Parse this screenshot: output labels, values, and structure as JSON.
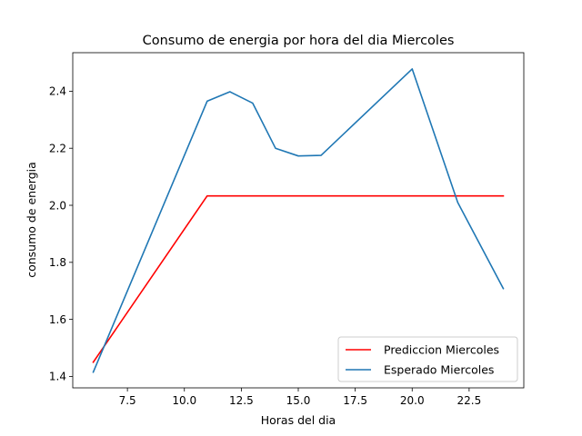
{
  "chart_data": {
    "type": "line",
    "title": "Consumo de energia por hora del dia Miercoles",
    "xlabel": "Horas del dia",
    "ylabel": "consumo de energia",
    "xlim": [
      5.1,
      24.9
    ],
    "ylim": [
      1.36,
      2.535
    ],
    "xticks": [
      7.5,
      10.0,
      12.5,
      15.0,
      17.5,
      20.0,
      22.5
    ],
    "xtick_labels": [
      "7.5",
      "10.0",
      "12.5",
      "15.0",
      "17.5",
      "20.0",
      "22.5"
    ],
    "yticks": [
      1.4,
      1.6,
      1.8,
      2.0,
      2.2,
      2.4
    ],
    "ytick_labels": [
      "1.4",
      "1.6",
      "1.8",
      "2.0",
      "2.2",
      "2.4"
    ],
    "grid": false,
    "legend": "lower-right",
    "series": [
      {
        "name": "Prediccion Miercoles",
        "color": "#ff0000",
        "x": [
          6,
          11,
          12,
          13,
          14,
          15,
          16,
          20,
          22,
          24
        ],
        "y": [
          1.45,
          2.033,
          2.033,
          2.033,
          2.033,
          2.033,
          2.033,
          2.033,
          2.033,
          2.033
        ]
      },
      {
        "name": "Esperado Miercoles",
        "color": "#1f77b4",
        "x": [
          6,
          11,
          12,
          13,
          14,
          15,
          16,
          20,
          22,
          24
        ],
        "y": [
          1.415,
          2.365,
          2.398,
          2.358,
          2.2,
          2.173,
          2.175,
          2.478,
          2.01,
          1.708
        ]
      }
    ]
  }
}
